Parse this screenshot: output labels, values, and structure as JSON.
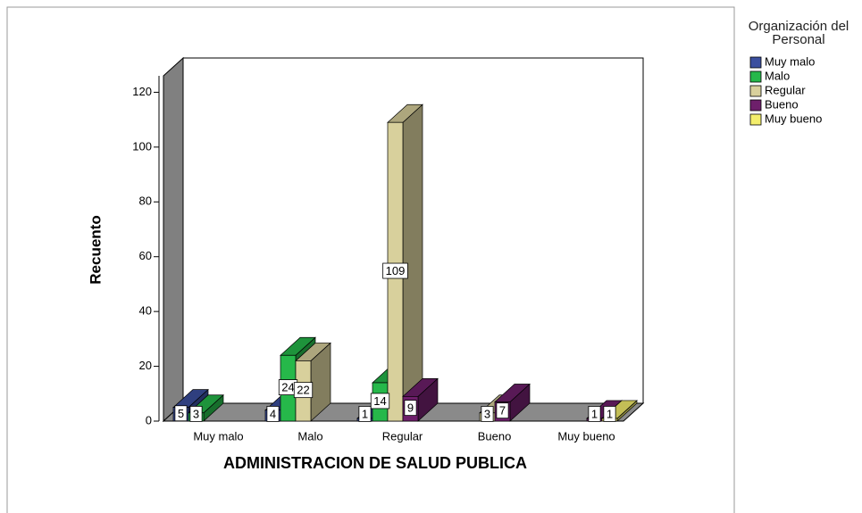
{
  "chart_data": {
    "type": "bar3d",
    "x_label": "ADMINISTRACION DE SALUD PUBLICA",
    "y_label": "Recuento",
    "legend_title": "Organización del Personal",
    "categories": [
      "Muy malo",
      "Malo",
      "Regular",
      "Bueno",
      "Muy bueno"
    ],
    "series": [
      {
        "name": "Muy malo",
        "color": "#3b4f9f",
        "values": [
          5,
          4,
          1,
          null,
          null
        ]
      },
      {
        "name": "Malo",
        "color": "#26b84a",
        "values": [
          3,
          24,
          14,
          null,
          null
        ]
      },
      {
        "name": "Regular",
        "color": "#d8d09c",
        "values": [
          null,
          22,
          109,
          3,
          null
        ]
      },
      {
        "name": "Bueno",
        "color": "#6e1f6b",
        "values": [
          null,
          null,
          9,
          7,
          1
        ]
      },
      {
        "name": "Muy bueno",
        "color": "#f4ee6c",
        "values": [
          null,
          null,
          null,
          null,
          1
        ]
      }
    ],
    "ylim": [
      0,
      126
    ],
    "yticks": [
      0,
      20,
      40,
      60,
      80,
      100,
      120
    ]
  }
}
